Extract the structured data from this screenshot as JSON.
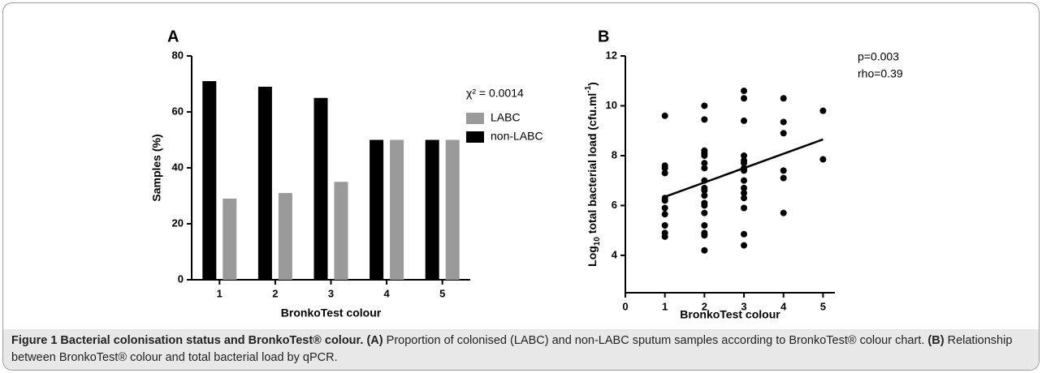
{
  "chart_data": [
    {
      "type": "bar",
      "panel": "A",
      "xlabel": "BronkoTest colour",
      "ylabel": "Samples (%)",
      "categories": [
        "1",
        "2",
        "3",
        "4",
        "5"
      ],
      "series": [
        {
          "name": "LABC",
          "color": "#9a9a9a",
          "values": [
            29,
            31,
            35,
            50,
            50
          ]
        },
        {
          "name": "non-LABC",
          "color": "#000000",
          "values": [
            71,
            69,
            65,
            50,
            50
          ]
        }
      ],
      "ylim": [
        0,
        80
      ],
      "yticks": [
        0,
        20,
        40,
        60,
        80
      ],
      "annotation": "χ² = 0.0014"
    },
    {
      "type": "scatter",
      "panel": "B",
      "xlabel": "BronkoTest colour",
      "ylabel": [
        "Log",
        "10",
        " total bacterial load (cfu.ml",
        "-1",
        ")"
      ],
      "color": "#000000",
      "x": [
        1,
        1,
        1,
        1,
        1,
        1,
        1,
        1,
        1,
        1,
        1,
        2,
        2,
        2,
        2,
        2,
        2,
        2,
        2,
        2,
        2,
        2,
        2,
        2,
        2,
        2,
        2,
        2,
        2,
        3,
        3,
        3,
        3,
        3,
        3,
        3,
        3,
        3,
        3,
        3,
        3,
        3,
        3,
        3,
        4,
        4,
        4,
        4,
        4,
        4,
        5,
        5
      ],
      "y": [
        9.6,
        7.6,
        7.5,
        7.3,
        6.3,
        6.2,
        5.9,
        5.65,
        5.2,
        4.9,
        4.75,
        10.0,
        9.45,
        8.2,
        8.1,
        8.0,
        7.7,
        7.5,
        7.0,
        6.7,
        6.6,
        6.4,
        6.1,
        6.0,
        5.7,
        5.2,
        4.9,
        4.8,
        4.2,
        10.6,
        10.3,
        9.4,
        8.0,
        7.8,
        7.7,
        7.5,
        7.4,
        7.0,
        6.7,
        6.5,
        6.3,
        5.9,
        4.85,
        4.4,
        10.3,
        9.35,
        8.9,
        7.4,
        7.1,
        5.7,
        9.8,
        7.85
      ],
      "trend": {
        "x": [
          1,
          5
        ],
        "y": [
          6.35,
          8.65
        ]
      },
      "xlim": [
        0,
        5.3
      ],
      "xticks": [
        0,
        1,
        2,
        3,
        4,
        5
      ],
      "ylim": [
        2.5,
        12
      ],
      "yticks": [
        4,
        6,
        8,
        10,
        12
      ],
      "annotations": [
        "p=0.003",
        "rho=0.39"
      ]
    }
  ],
  "caption": [
    {
      "text": "Figure 1 Bacterial colonisation status and BronkoTest® colour.",
      "bold": true
    },
    {
      "text": "(A)",
      "bold": true
    },
    {
      "text": "Proportion of colonised (LABC) and non-LABC sputum samples according to BronkoTest® colour chart.",
      "bold": false
    },
    {
      "text": "(B)",
      "bold": true
    },
    {
      "text": "Relationship between BronkoTest® colour and total bacterial load by qPCR.",
      "bold": false
    }
  ]
}
